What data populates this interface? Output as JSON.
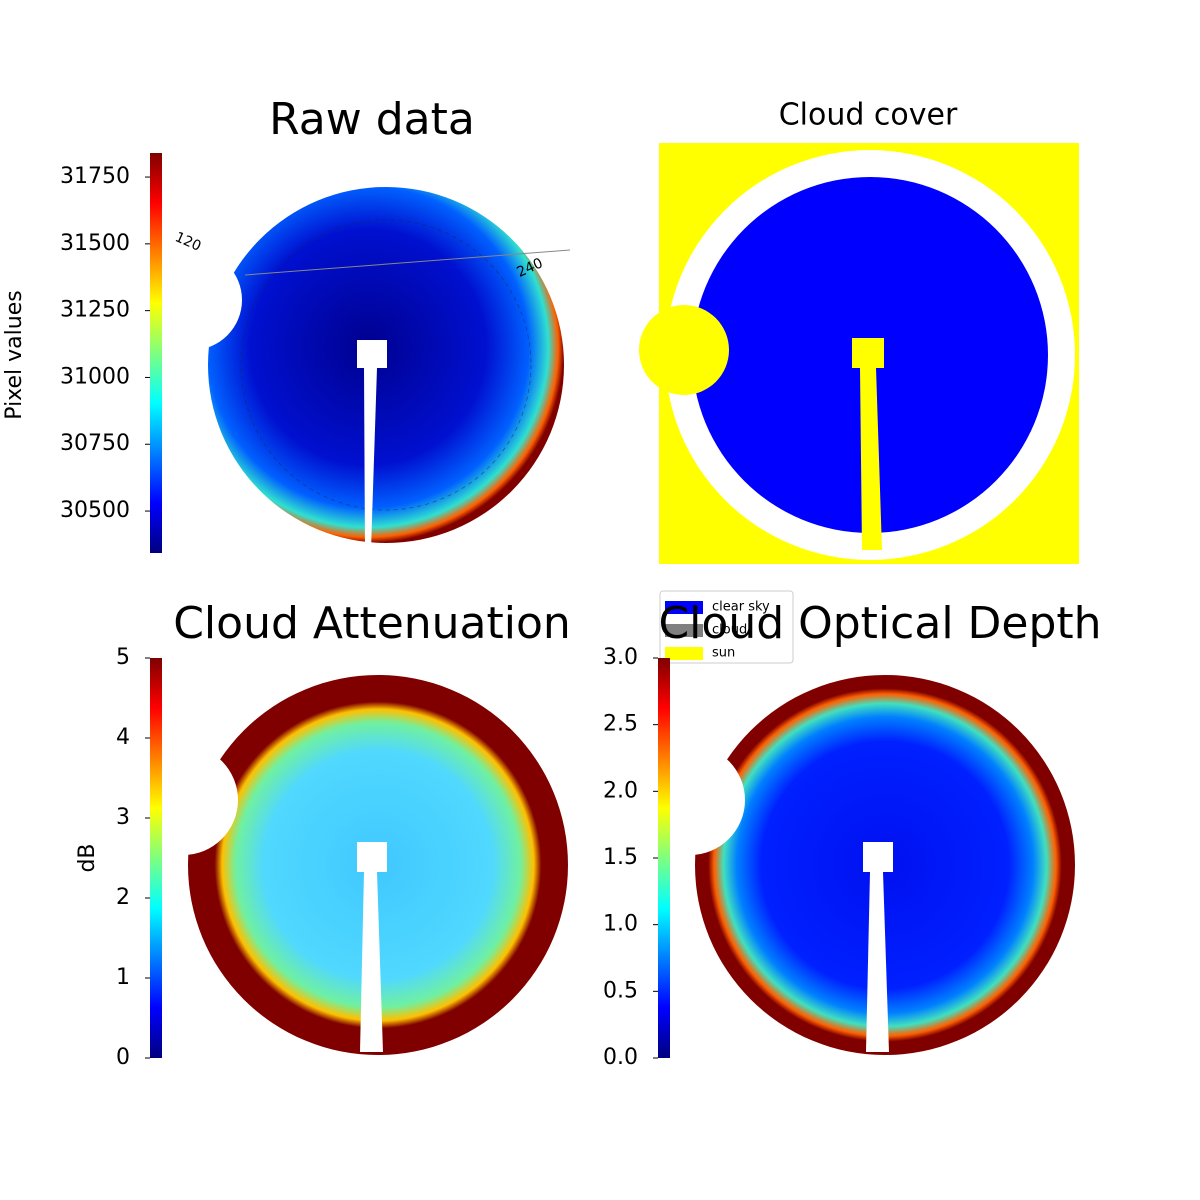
{
  "chart_data": [
    {
      "type": "colorbar-image",
      "title": "Raw data",
      "colormap": "jet",
      "colorbar_label": "Pixel values",
      "ylim": [
        30343,
        31840
      ],
      "yticks": [
        30500,
        30750,
        31000,
        31250,
        31500,
        31750
      ],
      "annotations": [
        "120",
        "240"
      ]
    },
    {
      "type": "categorical-image",
      "title": "Cloud cover",
      "series": [
        {
          "name": "clear sky",
          "color": "#0000ff"
        },
        {
          "name": "cloud",
          "color": "#808080"
        },
        {
          "name": "sun",
          "color": "#ffff00"
        }
      ]
    },
    {
      "type": "colorbar-image",
      "title": "Cloud Attenuation",
      "colormap": "jet",
      "colorbar_label": "dB",
      "ylim": [
        0,
        5
      ],
      "yticks": [
        0,
        1,
        2,
        3,
        4,
        5
      ]
    },
    {
      "type": "colorbar-image",
      "title": "Cloud Optical Depth",
      "colormap": "jet",
      "ylim": [
        0,
        3
      ],
      "yticks": [
        {
          "value": 0,
          "label": "0.0"
        },
        {
          "value": 0.5,
          "label": "0.5"
        },
        {
          "value": 1,
          "label": "1.0"
        },
        {
          "value": 1.5,
          "label": "1.5"
        },
        {
          "value": 2,
          "label": "2.0"
        },
        {
          "value": 2.5,
          "label": "2.5"
        },
        {
          "value": 3,
          "label": "3.0"
        }
      ]
    }
  ]
}
